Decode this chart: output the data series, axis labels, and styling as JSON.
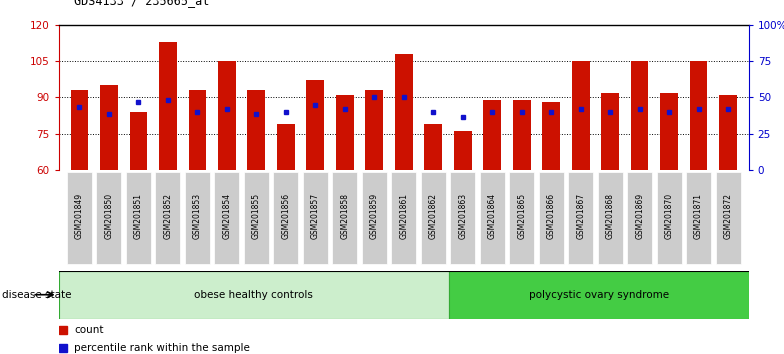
{
  "title": "GDS4133 / 235665_at",
  "categories": [
    "GSM201849",
    "GSM201850",
    "GSM201851",
    "GSM201852",
    "GSM201853",
    "GSM201854",
    "GSM201855",
    "GSM201856",
    "GSM201857",
    "GSM201858",
    "GSM201859",
    "GSM201861",
    "GSM201862",
    "GSM201863",
    "GSM201864",
    "GSM201865",
    "GSM201866",
    "GSM201867",
    "GSM201868",
    "GSM201869",
    "GSM201870",
    "GSM201871",
    "GSM201872"
  ],
  "counts": [
    93,
    95,
    84,
    113,
    93,
    105,
    93,
    79,
    97,
    91,
    93,
    108,
    79,
    76,
    89,
    89,
    88,
    105,
    92,
    105,
    92,
    105,
    91
  ],
  "percentile_y": [
    86,
    83,
    88,
    89,
    84,
    85,
    83,
    84,
    87,
    85,
    90,
    90,
    84,
    82,
    84,
    84,
    84,
    85,
    84,
    85,
    84,
    85,
    85
  ],
  "baseline": 60,
  "ylim_left": [
    60,
    120
  ],
  "ylim_right": [
    0,
    100
  ],
  "yticks_left": [
    60,
    75,
    90,
    105,
    120
  ],
  "yticks_right": [
    0,
    25,
    50,
    75,
    100
  ],
  "ytick_labels_right": [
    "0",
    "25",
    "50",
    "75",
    "100%"
  ],
  "group1_label": "obese healthy controls",
  "group2_label": "polycystic ovary syndrome",
  "group1_count": 13,
  "group2_count": 10,
  "bar_color": "#CC1100",
  "blue_color": "#1111CC",
  "group1_bg": "#CCEECC",
  "group2_bg": "#44CC44",
  "disease_state_label": "disease state",
  "legend_count": "count",
  "legend_pct": "percentile rank within the sample",
  "axis_left_color": "#CC0000",
  "axis_right_color": "#0000CC",
  "xtick_bg": "#CCCCCC",
  "figsize": [
    7.84,
    3.54
  ],
  "dpi": 100
}
